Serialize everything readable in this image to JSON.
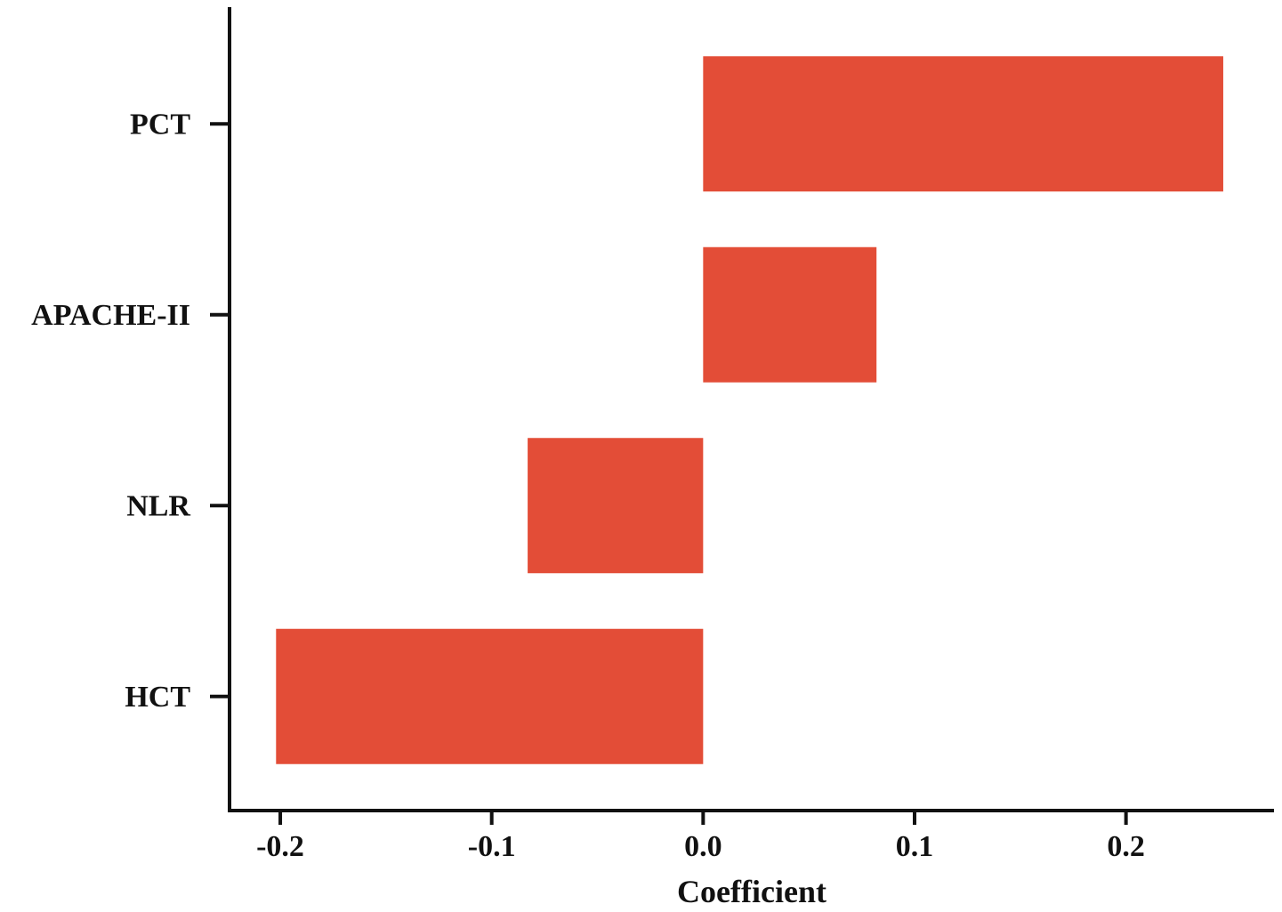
{
  "chart_data": {
    "type": "bar",
    "orientation": "horizontal",
    "categories": [
      "PCT",
      "APACHE-II",
      "NLR",
      "HCT"
    ],
    "values": [
      0.246,
      0.082,
      -0.083,
      -0.202
    ],
    "xlabel": "Coefficient",
    "ylabel": "",
    "title": "",
    "xlim": [
      -0.224,
      0.27
    ],
    "xticks": [
      -0.2,
      -0.1,
      0.0,
      0.1,
      0.2
    ],
    "xtick_labels": [
      "-0.2",
      "-0.1",
      "0.0",
      "0.1",
      "0.2"
    ],
    "grid": false,
    "legend": "none",
    "bar_color": "#e34d37"
  }
}
